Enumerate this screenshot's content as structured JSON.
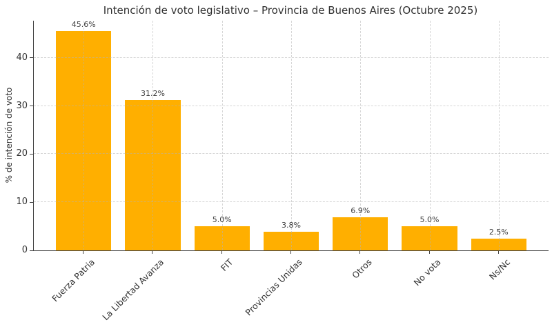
{
  "chart_data": {
    "type": "bar",
    "title": "Intención de voto legislativo – Provincia de Buenos Aires (Octubre 2025)",
    "ylabel": "% de intención de voto",
    "xlabel": "",
    "categories": [
      "Fuerza Patria",
      "La Libertad Avanza",
      "FIT",
      "Provincias Unidas",
      "Otros",
      "No vota",
      "Ns/Nc"
    ],
    "values": [
      45.6,
      31.2,
      5.0,
      3.8,
      6.9,
      5.0,
      2.5
    ],
    "value_labels": [
      "45.6%",
      "31.2%",
      "5.0%",
      "3.8%",
      "6.9%",
      "5.0%",
      "2.5%"
    ],
    "yticks": [
      0,
      10,
      20,
      30,
      40
    ],
    "ylim": [
      0,
      47.7
    ],
    "grid": true,
    "grid_style": "dashed",
    "legend_position": "none",
    "bar_color": "#ffaf00",
    "background_color": "#ffffff",
    "text_color": "#333333"
  }
}
